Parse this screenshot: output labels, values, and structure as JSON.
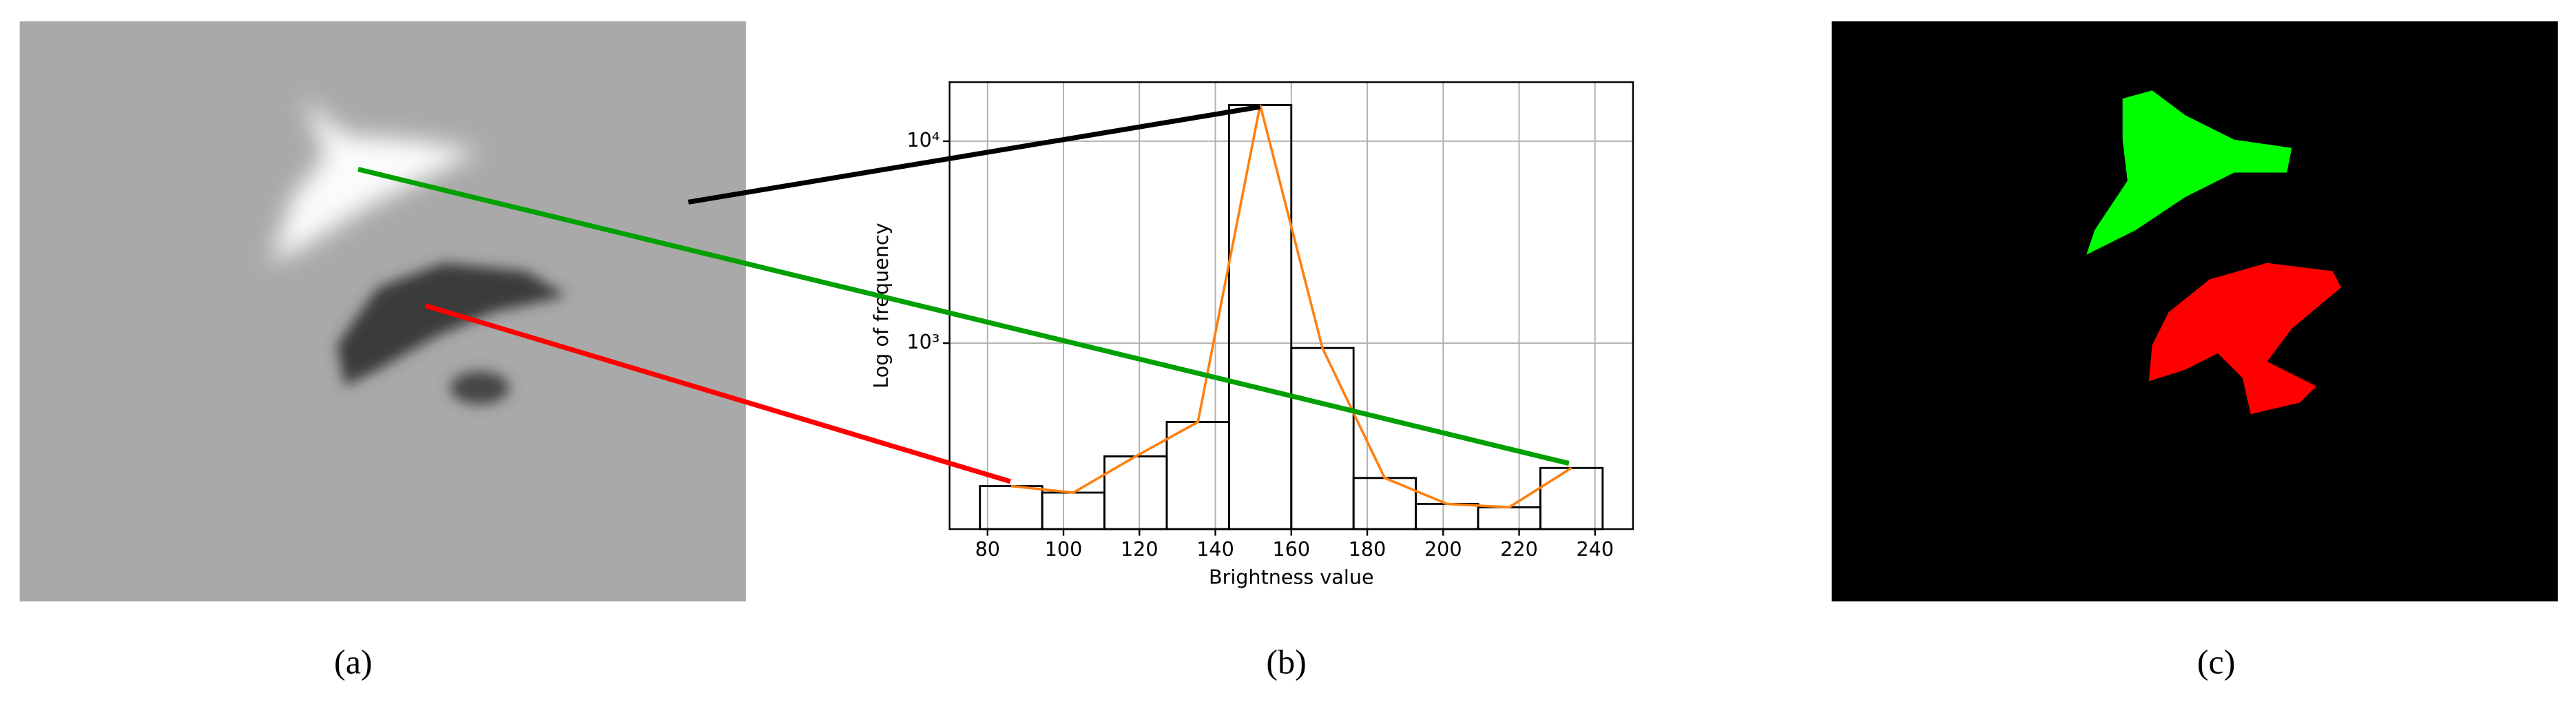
{
  "chart_data": {
    "type": "histogram",
    "xlabel": "Brightness value",
    "ylabel": "Log of frequency",
    "bins": [
      78,
      94.4,
      110.8,
      127.2,
      143.6,
      160,
      176.4,
      192.8,
      209.2,
      225.6,
      242
    ],
    "counts": [
      196,
      182,
      275,
      407,
      15100,
      946,
      215,
      160,
      154,
      241
    ],
    "bar_color": "#000000",
    "line_color": "#ff7f0e",
    "xlim": [
      70,
      250
    ],
    "xticks": [
      80,
      100,
      120,
      140,
      160,
      180,
      200,
      220,
      240
    ],
    "ylim": [
      120,
      19600
    ],
    "yticks": [
      {
        "value": 1000,
        "label": "10³"
      },
      {
        "value": 10000,
        "label": "10⁴"
      }
    ],
    "yscale": "log",
    "grid": true
  },
  "captions": [
    "(a)",
    "(b)",
    "(c)"
  ]
}
